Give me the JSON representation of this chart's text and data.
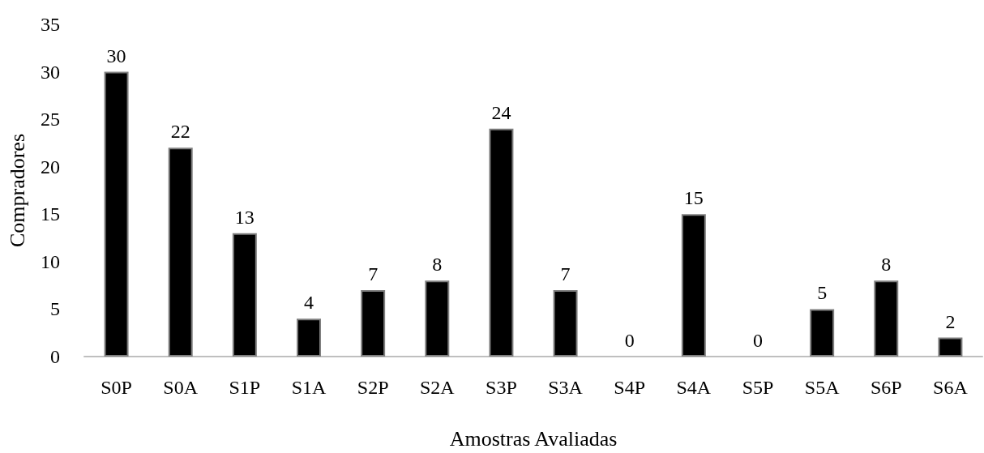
{
  "chart_data": {
    "type": "bar",
    "xlabel": "Amostras Avaliadas",
    "ylabel": "Compradores",
    "categories": [
      "S0P",
      "S0A",
      "S1P",
      "S1A",
      "S2P",
      "S2A",
      "S3P",
      "S3A",
      "S4P",
      "S4A",
      "S5P",
      "S5A",
      "S6P",
      "S6A"
    ],
    "values": [
      30,
      22,
      13,
      4,
      7,
      8,
      24,
      7,
      0,
      15,
      0,
      5,
      8,
      2
    ],
    "color": "#000000",
    "ylim": [
      0,
      35
    ],
    "yticks": [
      0,
      5,
      10,
      15,
      20,
      25,
      30,
      35
    ],
    "grid": false,
    "data_labels": true
  }
}
